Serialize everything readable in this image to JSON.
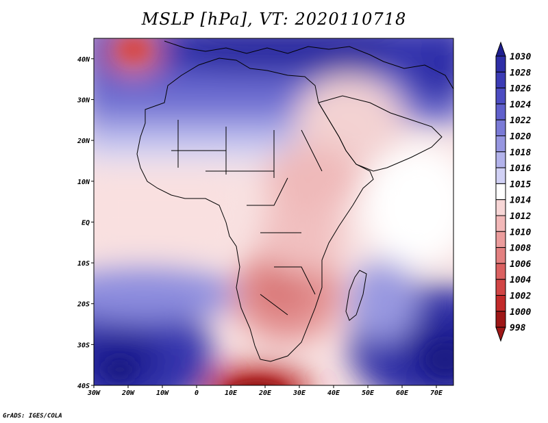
{
  "title": "MSLP [hPa], VT: 2020110718",
  "credit": "GrADS: IGES/COLA",
  "lat_ticks": [
    "40N",
    "30N",
    "20N",
    "10N",
    "EQ",
    "10S",
    "20S",
    "30S",
    "40S"
  ],
  "lon_ticks": [
    "30W",
    "20W",
    "10W",
    "0",
    "10E",
    "20E",
    "30E",
    "40E",
    "50E",
    "60E",
    "70E"
  ],
  "extent": {
    "lon": [
      -30,
      75
    ],
    "lat": [
      -40,
      45
    ]
  },
  "colorbar": {
    "levels": [
      "1030",
      "1028",
      "1026",
      "1024",
      "1022",
      "1020",
      "1018",
      "1016",
      "1015",
      "1014",
      "1012",
      "1010",
      "1008",
      "1006",
      "1004",
      "1002",
      "1000",
      "998"
    ],
    "colors": [
      "#1f1f8f",
      "#2e2ea6",
      "#3b3bb5",
      "#4c4cc2",
      "#6060cc",
      "#7a7ad6",
      "#9696e0",
      "#b3b3eb",
      "#d1d1f5",
      "#ffffff",
      "#f7d6d6",
      "#f2b8b8",
      "#eb9c9c",
      "#e38080",
      "#db6161",
      "#d14545",
      "#c22a2a",
      "#9e1717"
    ]
  },
  "chart_data": {
    "type": "heatmap",
    "title": "MSLP [hPa], VT: 2020110718",
    "variable_units": "hPa",
    "valid_time": "2020110718",
    "lon_range": [
      -30,
      75
    ],
    "lat_range": [
      -40,
      45
    ],
    "value_range": [
      998,
      1030
    ],
    "features": [
      {
        "label": "High",
        "lon": -20,
        "lat": -33,
        "value": 1030
      },
      {
        "label": "High",
        "lon": 70,
        "lat": -31,
        "value": 1030
      },
      {
        "label": "High",
        "lon": 10,
        "lat": 38,
        "value": 1026
      },
      {
        "label": "High",
        "lon": 65,
        "lat": 35,
        "value": 1030
      },
      {
        "label": "Low",
        "lon": -18,
        "lat": 44,
        "value": 1004
      },
      {
        "label": "Low",
        "lon": 20,
        "lat": -40,
        "value": 998
      },
      {
        "label": "Low",
        "lon": 23,
        "lat": -18,
        "value": 1006
      }
    ]
  }
}
